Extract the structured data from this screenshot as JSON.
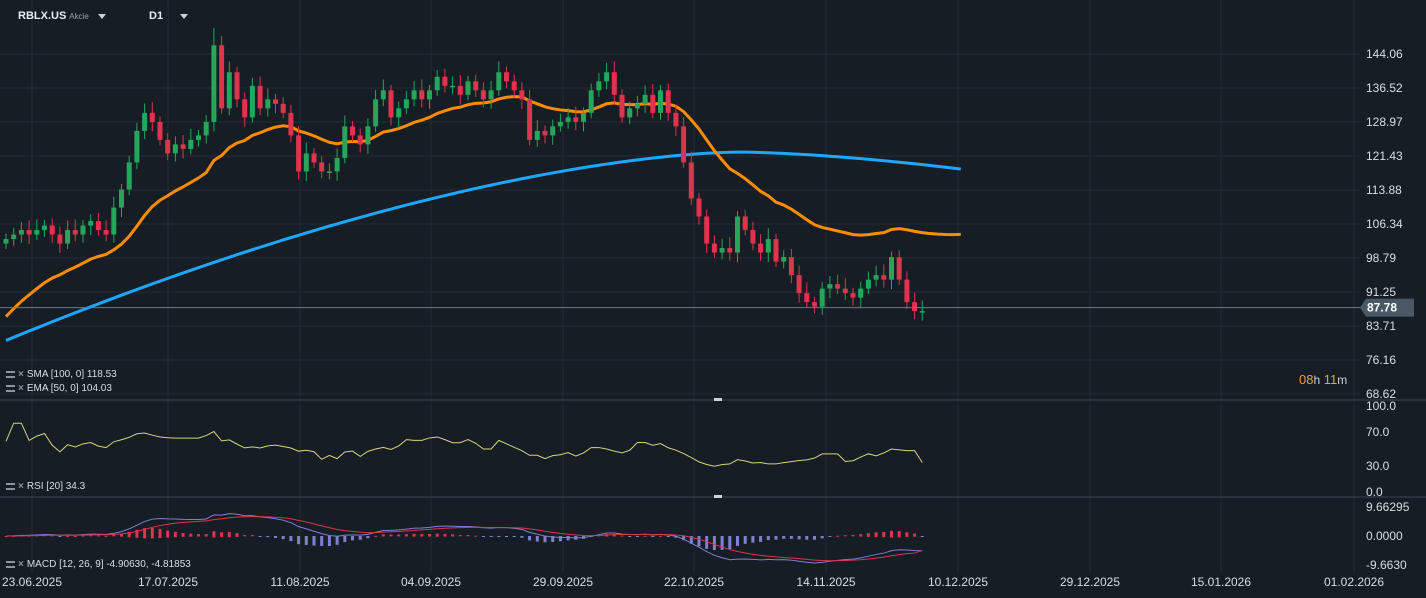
{
  "header": {
    "symbol": "RBLX.US",
    "symbol_type": "Akcie",
    "timeframe": "D1"
  },
  "countdown": {
    "hours": "08",
    "h": "h",
    "minutes": "11",
    "m": "m"
  },
  "indicators": {
    "sma_label": "SMA [100, 0] 118.53",
    "ema_label": "EMA [50, 0] 104.03",
    "rsi_label": "RSI [20] 34.3",
    "macd_label": "MACD [12, 26, 9] -4.90630, -4.81853"
  },
  "colors": {
    "background": "#161d25",
    "grid": "#222b35",
    "bull": "#26a65b",
    "bear": "#e0334d",
    "sma": "#1ea7ff",
    "ema": "#ff8c00",
    "rsi": "#d9d37a",
    "macd_line": "#7f7fd5",
    "signal_line": "#e0334d",
    "price_tag": "#4a5866"
  },
  "chart_data": {
    "type": "candlestick",
    "price_axis_ticks": [
      "144.06",
      "136.52",
      "128.97",
      "121.43",
      "113.88",
      "106.34",
      "98.79",
      "91.25",
      "83.71",
      "76.16",
      "68.62"
    ],
    "price_axis_range": [
      68.62,
      144.06
    ],
    "current_price": "87.78",
    "current_price_value": 87.78,
    "date_axis_labels": [
      "23.06.2025",
      "17.07.2025",
      "11.08.2025",
      "04.09.2025",
      "29.09.2025",
      "22.10.2025",
      "14.11.2025",
      "10.12.2025",
      "29.12.2025",
      "15.01.2026",
      "01.02.2026"
    ],
    "closes": [
      103,
      104,
      105,
      104,
      105,
      106,
      104,
      102,
      105,
      104,
      106,
      107,
      105,
      104,
      110,
      114,
      120,
      127,
      131,
      129,
      125,
      122,
      124,
      123,
      125,
      126,
      129,
      146,
      132,
      140,
      134,
      130,
      137,
      132,
      134,
      133,
      131,
      126,
      118,
      122,
      120,
      118,
      118,
      121,
      128,
      126,
      124,
      128,
      134,
      136,
      130,
      132,
      134,
      136,
      134,
      136,
      139,
      137,
      137,
      135,
      138,
      136,
      134,
      136,
      140,
      138,
      136,
      134,
      125,
      127,
      126,
      128,
      129,
      130,
      129,
      131,
      136,
      138,
      140,
      135,
      130,
      132,
      133,
      135,
      131,
      136,
      131,
      128,
      120,
      112,
      108,
      102,
      100,
      101,
      100,
      108,
      105,
      102,
      100,
      103,
      98,
      99,
      95,
      91,
      89,
      88,
      92,
      93,
      92,
      91,
      90,
      92,
      94,
      95,
      94,
      99,
      94,
      89,
      87,
      87
    ],
    "sma": {
      "name": "SMA",
      "start": [
        0,
        80.5
      ],
      "end": [
        130,
        118.53
      ]
    },
    "ema": {
      "name": "EMA",
      "end_value": 104.03
    },
    "rsi": {
      "axis_ticks": [
        "100.0",
        "70.0",
        "30.0",
        "0.0"
      ],
      "range": [
        0,
        100
      ],
      "last": 34.3
    },
    "macd": {
      "axis_ticks": [
        "9.66295",
        "0.0000",
        "-9.6630"
      ],
      "range": [
        -9.663,
        9.66295
      ],
      "macd": -4.9063,
      "signal": -4.81853
    }
  }
}
